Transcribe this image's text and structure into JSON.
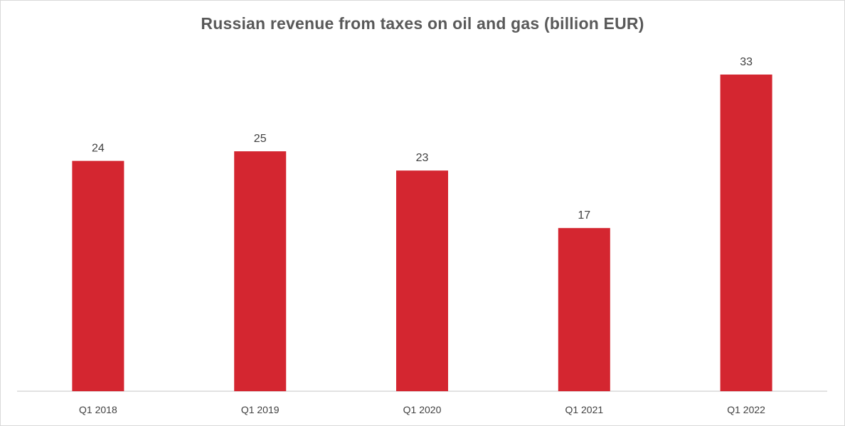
{
  "chart_data": {
    "type": "bar",
    "title": "Russian revenue from taxes on oil and gas (billion EUR)",
    "categories": [
      "Q1 2018",
      "Q1 2019",
      "Q1 2020",
      "Q1 2021",
      "Q1 2022"
    ],
    "values": [
      24,
      25,
      23,
      17,
      33
    ],
    "data_labels": [
      "24",
      "25",
      "23",
      "17",
      "33"
    ],
    "xlabel": "",
    "ylabel": "",
    "ylim": [
      0,
      35
    ],
    "grid": false,
    "legend": "none",
    "bar_color": "#D42630",
    "axis_color": "#D9D9D9"
  }
}
